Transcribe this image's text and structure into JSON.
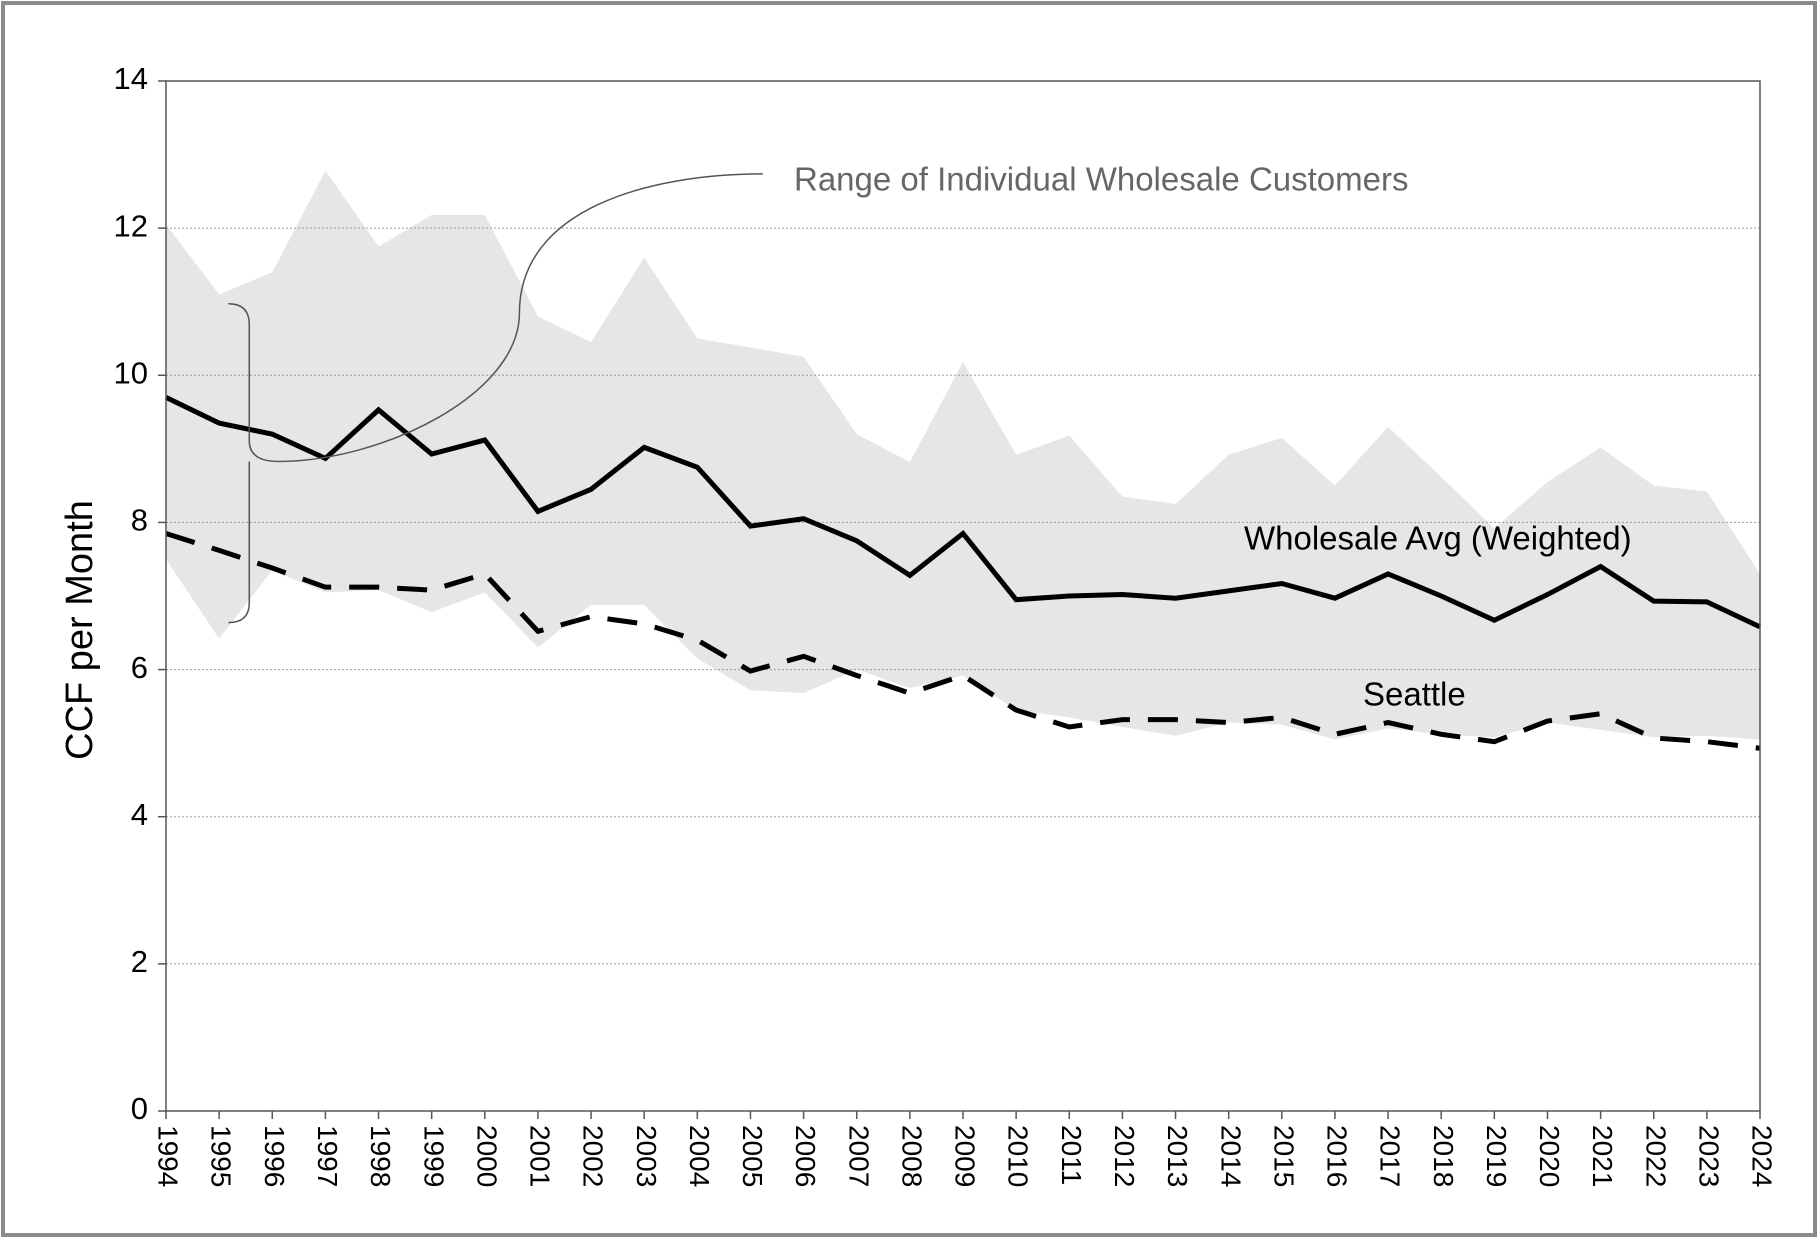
{
  "chart_data": {
    "type": "line",
    "ylabel": "CCF per Month",
    "x": [
      1994,
      1995,
      1996,
      1997,
      1998,
      1999,
      2000,
      2001,
      2002,
      2003,
      2004,
      2005,
      2006,
      2007,
      2008,
      2009,
      2010,
      2011,
      2012,
      2013,
      2014,
      2015,
      2016,
      2017,
      2018,
      2019,
      2020,
      2021,
      2022,
      2023,
      2024
    ],
    "xlim": [
      1994,
      2024
    ],
    "xticks": [
      1994,
      1995,
      1996,
      1997,
      1998,
      1999,
      2000,
      2001,
      2002,
      2003,
      2004,
      2005,
      2006,
      2007,
      2008,
      2009,
      2010,
      2011,
      2012,
      2013,
      2014,
      2015,
      2016,
      2017,
      2018,
      2019,
      2020,
      2021,
      2022,
      2023,
      2024
    ],
    "ylim": [
      0,
      14
    ],
    "yticks": [
      0,
      2,
      4,
      6,
      8,
      10,
      12,
      14
    ],
    "grid": true,
    "band": {
      "name": "Range of Individual Wholesale Customers",
      "color": "#e6e6e6",
      "upper": [
        12.05,
        11.1,
        11.4,
        12.78,
        11.75,
        12.18,
        12.18,
        10.8,
        10.45,
        11.6,
        10.5,
        10.38,
        10.25,
        9.2,
        8.82,
        10.18,
        8.92,
        9.18,
        8.35,
        8.25,
        8.92,
        9.15,
        8.5,
        9.3,
        8.62,
        7.92,
        8.55,
        9.02,
        8.5,
        8.42,
        7.3
      ],
      "lower": [
        7.5,
        6.42,
        7.35,
        7.05,
        7.08,
        6.78,
        7.05,
        6.3,
        6.88,
        6.88,
        6.15,
        5.72,
        5.68,
        6.0,
        5.75,
        5.92,
        5.45,
        5.35,
        5.22,
        5.1,
        5.28,
        5.25,
        5.05,
        5.2,
        5.12,
        5.08,
        5.28,
        5.18,
        5.08,
        5.1,
        5.05
      ]
    },
    "series": [
      {
        "name": "Wholesale Avg (Weighted)",
        "color": "#000000",
        "dash": "solid",
        "values": [
          9.7,
          9.35,
          9.2,
          8.87,
          9.53,
          8.93,
          9.12,
          8.15,
          8.45,
          9.02,
          8.75,
          7.95,
          8.05,
          7.75,
          7.28,
          7.85,
          6.95,
          7.0,
          7.02,
          6.97,
          7.07,
          7.17,
          6.97,
          7.3,
          7.0,
          6.67,
          7.02,
          7.4,
          6.93,
          6.92,
          6.58
        ]
      },
      {
        "name": "Seattle",
        "color": "#000000",
        "dash": "dashed",
        "values": [
          7.85,
          7.62,
          7.38,
          7.12,
          7.12,
          7.08,
          7.3,
          6.52,
          6.72,
          6.62,
          6.4,
          5.98,
          6.18,
          5.92,
          5.68,
          5.92,
          5.45,
          5.22,
          5.32,
          5.32,
          5.28,
          5.35,
          5.12,
          5.28,
          5.12,
          5.02,
          5.3,
          5.4,
          5.07,
          5.02,
          4.93
        ]
      }
    ]
  }
}
